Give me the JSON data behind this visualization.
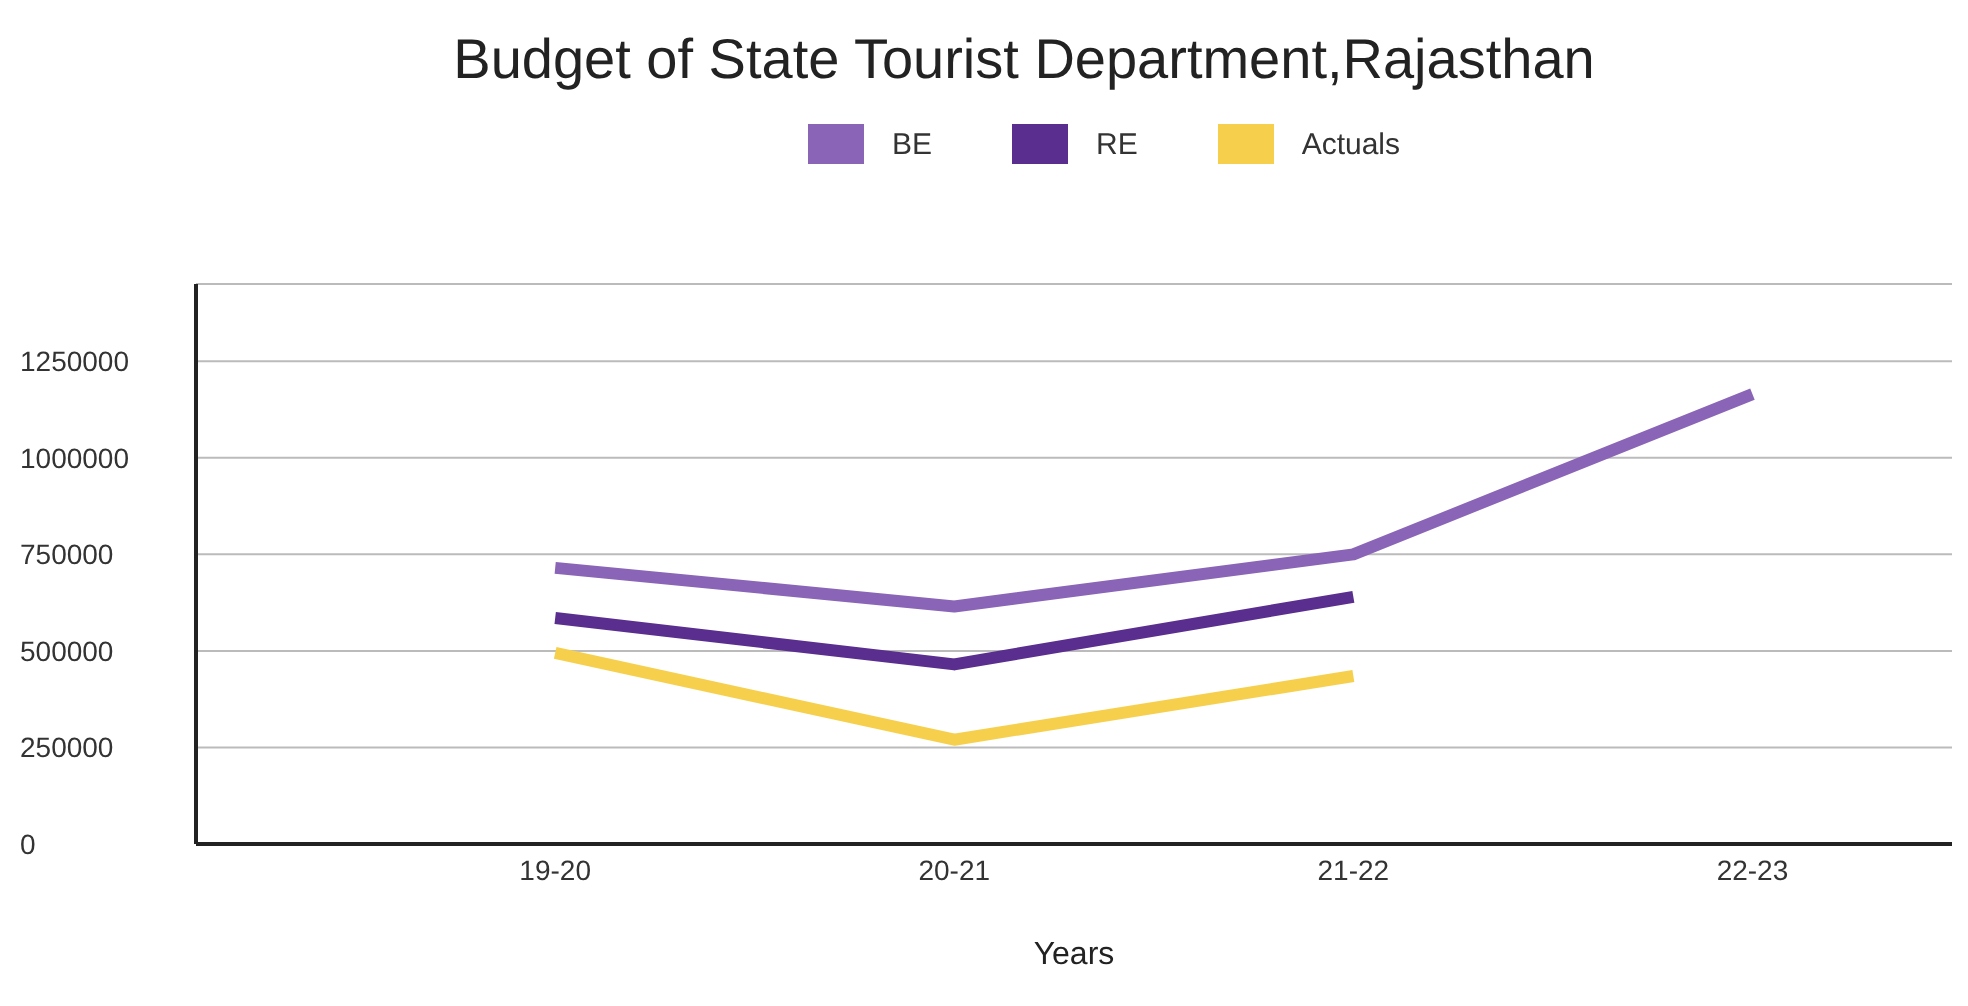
{
  "chart_data": {
    "type": "line",
    "title": "Budget of State Tourist Department,Rajasthan",
    "xlabel": "Years",
    "categories": [
      "19-20",
      "20-21",
      "21-22",
      "22-23"
    ],
    "series": [
      {
        "name": "BE",
        "color": "#8a64b6",
        "values": [
          715000,
          615000,
          750000,
          1165000
        ]
      },
      {
        "name": "RE",
        "color": "#5a2e8e",
        "values": [
          585000,
          465000,
          640000,
          null
        ]
      },
      {
        "name": "Actuals",
        "color": "#f6d04d",
        "values": [
          495000,
          270000,
          435000,
          null
        ]
      }
    ],
    "ylim": [
      0,
      1450000
    ],
    "yticks": [
      0,
      250000,
      500000,
      750000,
      1000000,
      1250000
    ],
    "grid": "y",
    "legend": "top",
    "marker": "none",
    "line_style": "solid"
  }
}
